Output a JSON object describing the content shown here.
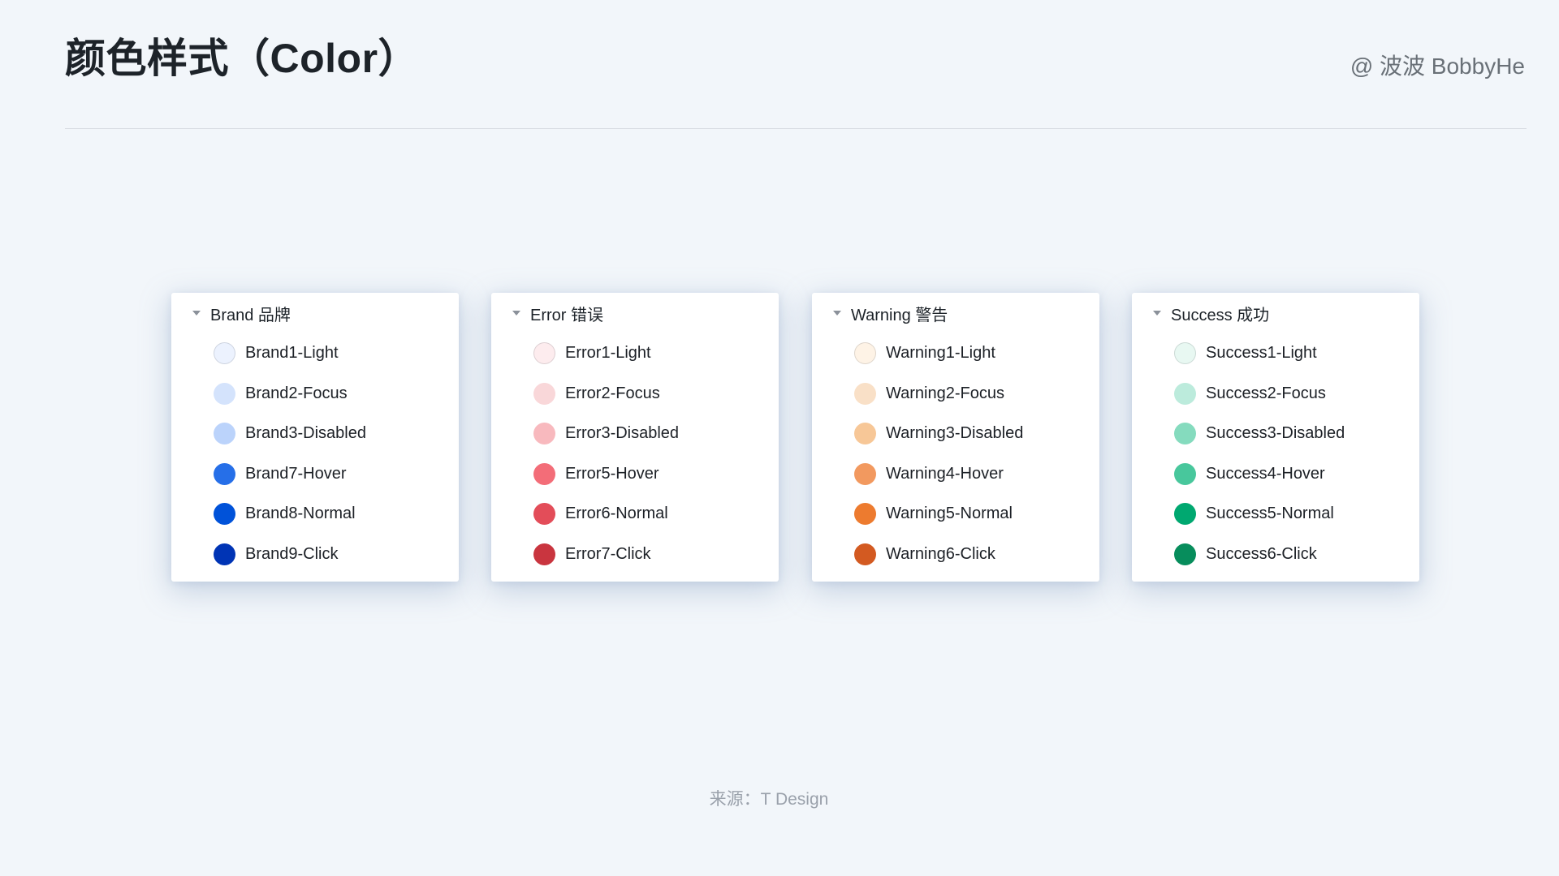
{
  "header": {
    "title": "颜色样式（Color）",
    "author": "@ 波波 BobbyHe"
  },
  "footer": {
    "source": "来源：T Design"
  },
  "colors": {
    "background": "#f2f6fa",
    "panel_background": "#ffffff",
    "divider": "#d9dde3",
    "title_text": "#1d2329",
    "author_text": "#697077",
    "label_text": "#1c2026",
    "caret": "#8b919a",
    "footer_text": "#9aa1ab"
  },
  "panels": [
    {
      "title": "Brand 品牌",
      "caret_icon": "chevron-down",
      "items": [
        {
          "label": "Brand1-Light",
          "color": "#ECF2FE",
          "ring": true
        },
        {
          "label": "Brand2-Focus",
          "color": "#D4E3FC"
        },
        {
          "label": "Brand3-Disabled",
          "color": "#BBD3FB"
        },
        {
          "label": "Brand7-Hover",
          "color": "#266FE8"
        },
        {
          "label": "Brand8-Normal",
          "color": "#0052D9"
        },
        {
          "label": "Brand9-Click",
          "color": "#0034B5"
        }
      ]
    },
    {
      "title": "Error 错误",
      "caret_icon": "chevron-down",
      "items": [
        {
          "label": "Error1-Light",
          "color": "#FDECEE",
          "ring": true
        },
        {
          "label": "Error2-Focus",
          "color": "#F9D7D9"
        },
        {
          "label": "Error3-Disabled",
          "color": "#F8B9BE"
        },
        {
          "label": "Error5-Hover",
          "color": "#F36D78"
        },
        {
          "label": "Error6-Normal",
          "color": "#E34D59"
        },
        {
          "label": "Error7-Click",
          "color": "#C9353F"
        }
      ]
    },
    {
      "title": "Warning 警告",
      "caret_icon": "chevron-down",
      "items": [
        {
          "label": "Warning1-Light",
          "color": "#FEF3E6",
          "ring": true
        },
        {
          "label": "Warning2-Focus",
          "color": "#F9E0C7"
        },
        {
          "label": "Warning3-Disabled",
          "color": "#F7C797"
        },
        {
          "label": "Warning4-Hover",
          "color": "#F2995F"
        },
        {
          "label": "Warning5-Normal",
          "color": "#ED7B2F"
        },
        {
          "label": "Warning6-Click",
          "color": "#D35A21"
        }
      ]
    },
    {
      "title": "Success 成功",
      "caret_icon": "chevron-down",
      "items": [
        {
          "label": "Success1-Light",
          "color": "#E8F8F2",
          "ring": true
        },
        {
          "label": "Success2-Focus",
          "color": "#BCEBDC"
        },
        {
          "label": "Success3-Disabled",
          "color": "#85DBBE"
        },
        {
          "label": "Success4-Hover",
          "color": "#48C79C"
        },
        {
          "label": "Success5-Normal",
          "color": "#00A870"
        },
        {
          "label": "Success6-Click",
          "color": "#078D5C"
        }
      ]
    }
  ]
}
